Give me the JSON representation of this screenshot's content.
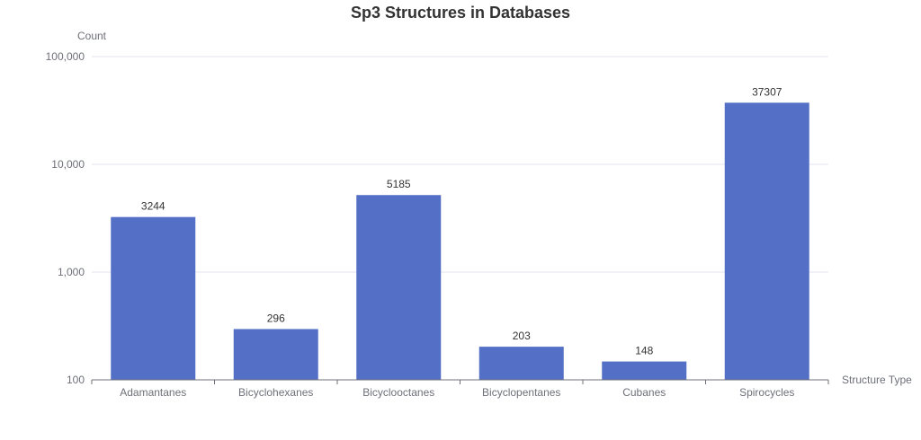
{
  "chart_data": {
    "type": "bar",
    "title": "Sp3 Structures in Databases",
    "xlabel": "Structure Type",
    "ylabel": "Count",
    "y_scale": "log",
    "ylim": [
      100,
      100000
    ],
    "y_ticks": [
      100,
      1000,
      10000,
      100000
    ],
    "y_tick_labels": [
      "100",
      "1,000",
      "10,000",
      "100,000"
    ],
    "categories": [
      "Adamantanes",
      "Bicyclohexanes",
      "Bicyclooctanes",
      "Bicyclopentanes",
      "Cubanes",
      "Spirocycles"
    ],
    "values": [
      3244,
      296,
      5185,
      203,
      148,
      37307
    ],
    "data_labels": [
      "3244",
      "296",
      "5185",
      "203",
      "148",
      "37307"
    ],
    "bar_color": "#5470c6",
    "grid": true,
    "legend": "none"
  }
}
